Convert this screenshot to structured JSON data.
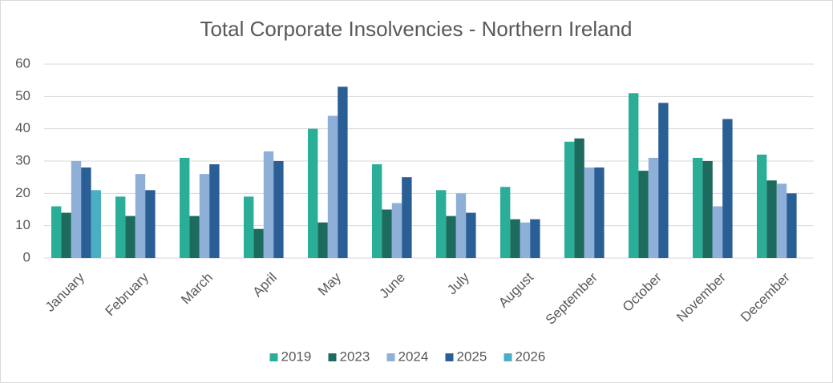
{
  "chart_data": {
    "type": "bar",
    "title": "Total Corporate Insolvencies - Northern Ireland",
    "categories": [
      "January",
      "February",
      "March",
      "April",
      "May",
      "June",
      "July",
      "August",
      "September",
      "October",
      "November",
      "December"
    ],
    "series": [
      {
        "name": "2019",
        "color": "#2bae97",
        "values": [
          16,
          19,
          31,
          19,
          40,
          29,
          21,
          22,
          36,
          51,
          31,
          32
        ]
      },
      {
        "name": "2023",
        "color": "#1d6b5e",
        "values": [
          14,
          13,
          13,
          9,
          11,
          15,
          13,
          12,
          37,
          27,
          30,
          24
        ]
      },
      {
        "name": "2024",
        "color": "#8eb0d8",
        "values": [
          30,
          26,
          26,
          33,
          44,
          17,
          20,
          11,
          28,
          31,
          16,
          23
        ]
      },
      {
        "name": "2025",
        "color": "#2a5f96",
        "values": [
          28,
          21,
          29,
          30,
          53,
          25,
          14,
          12,
          28,
          48,
          43,
          20
        ]
      },
      {
        "name": "2026",
        "color": "#4aaec4",
        "values": [
          21,
          null,
          null,
          null,
          null,
          null,
          null,
          null,
          null,
          null,
          null,
          null
        ]
      }
    ],
    "ylim": [
      0,
      60
    ],
    "yticks": [
      0,
      10,
      20,
      30,
      40,
      50,
      60
    ],
    "grid": true,
    "legend": "bottom"
  }
}
